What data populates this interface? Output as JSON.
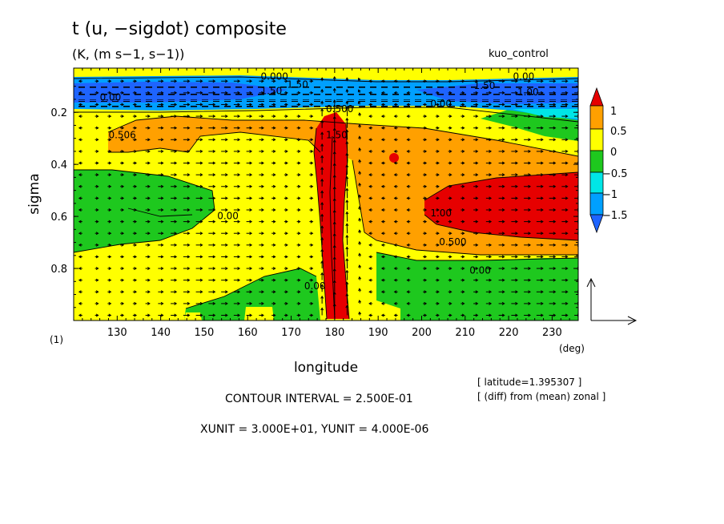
{
  "header": {
    "title": "t (u, −sigdot) composite",
    "subtitle": "(K, (m s−1, s−1))",
    "run_name": "kuo_control"
  },
  "footer": {
    "panel_label": "(1)",
    "x_unit_label": "(deg)",
    "latitude_note": "[ latitude=1.395307 ]",
    "diff_note": "[ (diff) from (mean) zonal ]",
    "contour_interval": "CONTOUR INTERVAL = 2.500E-01",
    "vector_units": "XUNIT = 3.000E+01, YUNIT = 4.000E-06"
  },
  "colors": {
    "lt_neg_1_5": "#1e64ff",
    "neg_1_5_to_neg_1": "#00a0ff",
    "neg_1_to_neg_0_5": "#00e6e6",
    "neg_0_5_to_0": "#1ec81e",
    "zero_to_0_5": "#ffff00",
    "0_5_to_1": "#ffa000",
    "gt_1": "#e60000"
  },
  "chart_data": {
    "type": "heatmap",
    "xlabel": "longitude",
    "ylabel": "sigma",
    "xlim": [
      120,
      236
    ],
    "ylim": [
      1.0,
      0.03
    ],
    "x_ticks": [
      130,
      140,
      150,
      160,
      170,
      180,
      190,
      200,
      210,
      220,
      230
    ],
    "y_ticks": [
      0.2,
      0.4,
      0.6,
      0.8
    ],
    "colorbar": {
      "levels": [
        -1.5,
        -1,
        -0.5,
        0,
        0.5,
        1
      ],
      "tick_labels": [
        "1",
        "0.5",
        "0",
        "−0.5",
        "−1",
        "−1.5"
      ],
      "extend": "both"
    },
    "contour_labels": [
      {
        "text": "1.50",
        "x": 169,
        "y": 0.105
      },
      {
        "text": "0.000",
        "x": 163,
        "y": 0.075
      },
      {
        "text": "1.50",
        "x": 163,
        "y": 0.13
      },
      {
        "text": "0.00",
        "x": 126,
        "y": 0.155
      },
      {
        "text": "0.500",
        "x": 178,
        "y": 0.2
      },
      {
        "text": "1.50",
        "x": 178,
        "y": 0.3
      },
      {
        "text": "0.506",
        "x": 128,
        "y": 0.3
      },
      {
        "text": "0.00",
        "x": 221,
        "y": 0.075
      },
      {
        "text": "1.50",
        "x": 212,
        "y": 0.11
      },
      {
        "text": "1.00",
        "x": 222,
        "y": 0.135
      },
      {
        "text": "0.00",
        "x": 202,
        "y": 0.18
      },
      {
        "text": "0.00",
        "x": 153,
        "y": 0.61
      },
      {
        "text": "1.00",
        "x": 202,
        "y": 0.6
      },
      {
        "text": "0.500",
        "x": 204,
        "y": 0.71
      },
      {
        "text": "0.00",
        "x": 211,
        "y": 0.82
      },
      {
        "text": "0.00",
        "x": 173,
        "y": 0.88
      }
    ],
    "regions": [
      {
        "value_range": "0 to 0.5",
        "area": "domain background (lower troposphere west, upper band)"
      },
      {
        "value_range": "-1.5 to -1",
        "area": "sigma 0.08-0.16 across domain"
      },
      {
        "value_range": "< -1.5",
        "area": "sigma 0.09-0.14 near 140-165 and 210-230"
      },
      {
        "value_range": "0.5 to 1",
        "area": "sigma 0.2-0.8 central and eastern domain"
      },
      {
        "value_range": "> 1",
        "area": "column near 180 (sigma 0.15-0.98) and east 200-236 (sigma 0.45-0.65)"
      },
      {
        "value_range": "-0.5 to 0",
        "area": "west 120-143 sigma 0.48-0.77; southeast 188-236 sigma 0.78-1.0; 146-183 sigma 0.8-1.0"
      }
    ]
  }
}
